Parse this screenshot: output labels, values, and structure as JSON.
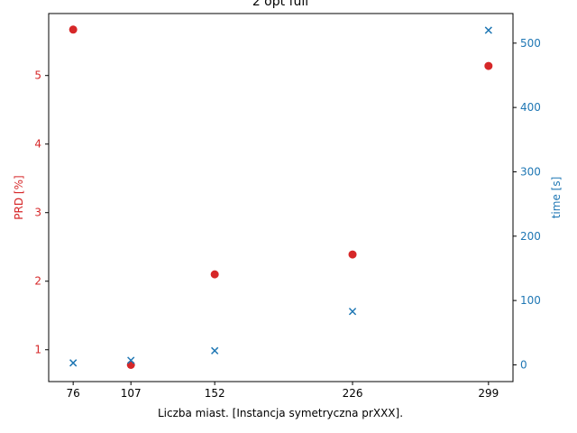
{
  "chart_data": {
    "type": "scatter",
    "title": "2 opt full",
    "xlabel": "Liczba miast. [Instancja symetryczna prXXX].",
    "x_ticks": [
      76,
      107,
      152,
      226,
      299
    ],
    "xlim": [
      62.85,
      312.15
    ],
    "x": [
      76,
      107,
      152,
      226,
      299
    ],
    "left_axis": {
      "label": "PRD [%]",
      "color": "#d62728",
      "ylim": [
        0.536,
        5.904
      ],
      "ticks": [
        1,
        2,
        3,
        4,
        5
      ]
    },
    "right_axis": {
      "label": "time [s]",
      "color": "#1f77b4",
      "ylim": [
        -26.0,
        546.0
      ],
      "ticks": [
        0,
        100,
        200,
        300,
        400,
        500
      ]
    },
    "series": [
      {
        "axis": "left",
        "marker": "circle",
        "color": "#d62728",
        "values": [
          5.67,
          0.78,
          2.1,
          2.39,
          5.14
        ]
      },
      {
        "axis": "right",
        "marker": "x",
        "color": "#1f77b4",
        "values": [
          3,
          7,
          22,
          83,
          520
        ]
      }
    ],
    "grid": false
  }
}
